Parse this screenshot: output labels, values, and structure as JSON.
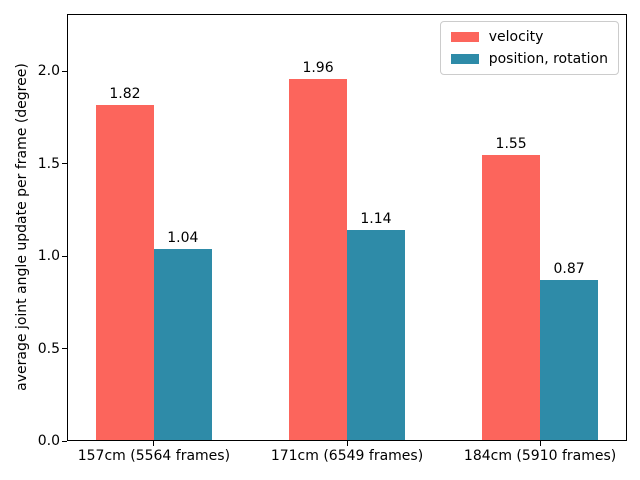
{
  "chart_data": {
    "type": "bar",
    "title": "",
    "xlabel": "",
    "ylabel": "average joint angle update per frame (degree)",
    "categories": [
      "157cm (5564 frames)",
      "171cm (6549 frames)",
      "184cm (5910 frames)"
    ],
    "series": [
      {
        "name": "velocity",
        "color": "#fc655c",
        "values": [
          1.82,
          1.96,
          1.55
        ]
      },
      {
        "name": "position, rotation",
        "color": "#2e8ba8",
        "values": [
          1.04,
          1.14,
          0.87
        ]
      }
    ],
    "bar_value_labels": [
      [
        "1.82",
        "1.96",
        "1.55"
      ],
      [
        "1.04",
        "1.14",
        "0.87"
      ]
    ],
    "yticks": [
      "0.0",
      "0.5",
      "1.0",
      "1.5",
      "2.0"
    ],
    "ytick_values": [
      0.0,
      0.5,
      1.0,
      1.5,
      2.0
    ],
    "ylim": [
      0,
      2.31
    ],
    "xlim": [
      -0.45,
      2.45
    ],
    "bar_width": 0.3,
    "grid": false,
    "legend_position": "upper right",
    "background_color": "#ffffff",
    "spine_color": "#000000"
  }
}
